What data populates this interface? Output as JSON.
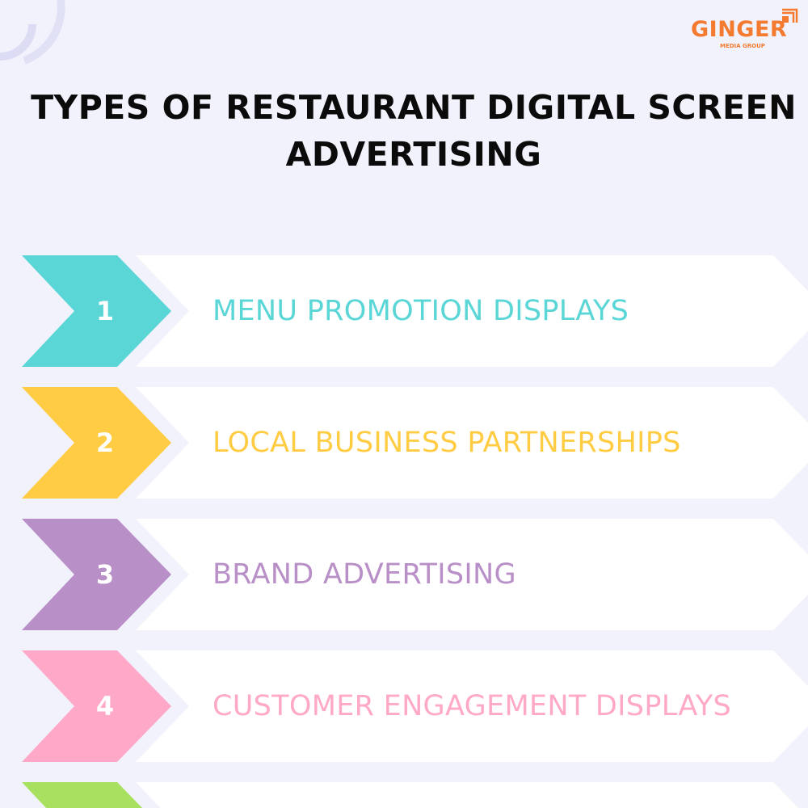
{
  "logo": {
    "name": "GINGER",
    "subtitle": "MEDIA GROUP",
    "color": "#f47a30"
  },
  "title": {
    "line1": "TYPES OF RESTAURANT DIGITAL SCREEN",
    "line2": "ADVERTISING"
  },
  "items": [
    {
      "number": "1",
      "label": "MENU PROMOTION DISPLAYS",
      "color": "#5ad6d6"
    },
    {
      "number": "2",
      "label": "LOCAL BUSINESS PARTNERSHIPS",
      "color": "#ffcc44"
    },
    {
      "number": "3",
      "label": "BRAND ADVERTISING",
      "color": "#b98fc8"
    },
    {
      "number": "4",
      "label": "CUSTOMER ENGAGEMENT DISPLAYS",
      "color": "#ffa8c8"
    },
    {
      "number": "",
      "label": "",
      "color": "#a8e060"
    }
  ],
  "background": "#f2f2fc"
}
